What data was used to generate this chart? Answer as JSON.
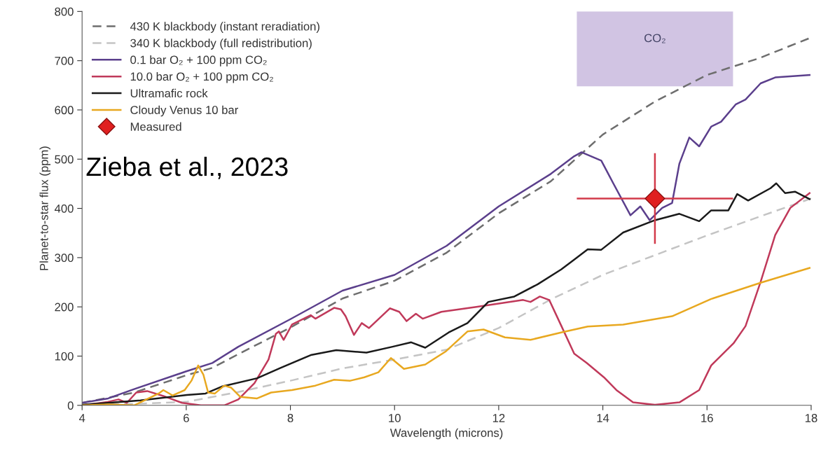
{
  "chart_data": {
    "type": "line",
    "xlabel": "Wavelength (microns)",
    "ylabel": "Planet-to-star flux (ppm)",
    "xlim": [
      4,
      18
    ],
    "xticks": [
      4,
      6,
      8,
      10,
      12,
      14,
      16,
      18
    ],
    "ylim": [
      0,
      800
    ],
    "yticks": [
      0,
      100,
      200,
      300,
      400,
      500,
      600,
      700,
      800
    ],
    "grid": false,
    "legend": "top left",
    "marker": "none",
    "annotations": [
      "Zieba et al., 2023"
    ],
    "bands": [
      {
        "axis": "x",
        "from": 13.5,
        "to": 16.5,
        "label": "CO₂",
        "color": "#9a7cc0"
      }
    ],
    "series": [
      {
        "name": "430 K blackbody (instant reradiation)",
        "color": "#6e6e6e",
        "line_style": "dashed",
        "x": [
          4,
          5,
          6,
          6.5,
          7,
          8,
          9,
          10,
          11,
          12,
          13,
          13.6,
          14,
          15,
          16,
          17,
          18
        ],
        "values": [
          5,
          26,
          61,
          76,
          104,
          158,
          217,
          253,
          310,
          390,
          455,
          512,
          550,
          617,
          671,
          705,
          747
        ]
      },
      {
        "name": "340 K blackbody (full redistribution)",
        "color": "#c4c4c4",
        "line_style": "dashed",
        "x": [
          4,
          5,
          6,
          7,
          8,
          9,
          10,
          11,
          12,
          13,
          14,
          15,
          16,
          17,
          18
        ],
        "values": [
          1,
          3,
          7,
          27,
          50,
          75,
          93,
          113,
          157,
          215,
          265,
          305,
          345,
          383,
          420
        ]
      },
      {
        "name": "0.1 bar O₂ + 100 ppm CO₂",
        "color": "#5b3f8c",
        "line_style": "solid",
        "x": [
          4,
          4.5,
          5,
          6,
          6.5,
          7,
          8,
          9,
          10,
          11,
          12,
          13,
          13.45,
          13.59,
          13.97,
          14.2,
          14.53,
          14.72,
          14.9,
          15.14,
          15.33,
          15.47,
          15.66,
          15.85,
          16.08,
          16.27,
          16.55,
          16.74,
          17.03,
          17.31,
          17.97
        ],
        "values": [
          5,
          14,
          33,
          69,
          86,
          119,
          175,
          233,
          265,
          324,
          404,
          470,
          506,
          514,
          497,
          451,
          386,
          404,
          376,
          401,
          411,
          491,
          544,
          526,
          566,
          576,
          611,
          621,
          654,
          666,
          671
        ]
      },
      {
        "name": "10.0 bar O₂ + 100 ppm CO₂",
        "color": "#c0395a",
        "line_style": "solid",
        "x": [
          4,
          4.49,
          4.7,
          4.86,
          5.04,
          5.25,
          5.56,
          5.92,
          6.28,
          6.73,
          7,
          7.31,
          7.58,
          7.72,
          7.78,
          7.87,
          8.03,
          8.39,
          8.48,
          8.84,
          8.97,
          9.06,
          9.22,
          9.37,
          9.51,
          9.91,
          10.09,
          10.23,
          10.41,
          10.54,
          10.9,
          11.57,
          12.47,
          12.61,
          12.79,
          12.97,
          13.2,
          13.45,
          13.69,
          14.02,
          14.26,
          14.58,
          15,
          15.47,
          15.85,
          16.08,
          16.51,
          16.74,
          17.03,
          17.31,
          17.6,
          17.97
        ],
        "values": [
          0,
          7,
          12,
          5,
          26,
          29,
          19,
          5,
          0,
          0,
          12,
          45,
          93,
          145,
          150,
          133,
          164,
          183,
          176,
          198,
          195,
          181,
          143,
          167,
          157,
          197,
          190,
          171,
          186,
          176,
          190,
          200,
          214,
          210,
          221,
          214,
          162,
          105,
          86,
          57,
          31,
          6,
          1,
          6,
          31,
          81,
          126,
          161,
          251,
          346,
          401,
          431
        ]
      },
      {
        "name": "Ultramafic rock",
        "color": "#1a1a1a",
        "line_style": "solid",
        "x": [
          4,
          5.12,
          6.01,
          6.37,
          6.68,
          7.36,
          7.81,
          8.39,
          8.88,
          9.46,
          9.96,
          10.32,
          10.59,
          11.04,
          11.4,
          11.8,
          12.3,
          12.75,
          13.2,
          13.45,
          13.71,
          13.97,
          14.39,
          15,
          15.47,
          15.85,
          16.08,
          16.41,
          16.58,
          16.79,
          17.22,
          17.33,
          17.5,
          17.69,
          17.97
        ],
        "values": [
          1,
          10,
          21,
          24,
          38,
          55,
          76,
          102,
          112,
          107,
          119,
          128,
          117,
          148,
          167,
          210,
          221,
          246,
          276,
          296,
          317,
          316,
          351,
          376,
          389,
          374,
          396,
          396,
          429,
          416,
          441,
          451,
          431,
          434,
          419
        ]
      },
      {
        "name": "Cloudy Venus 10 bar",
        "color": "#e8a820",
        "line_style": "solid",
        "x": [
          4,
          4.5,
          5,
          5.47,
          5.56,
          5.74,
          5.97,
          6.1,
          6.23,
          6.33,
          6.42,
          6.55,
          6.73,
          6.86,
          7.04,
          7.36,
          7.63,
          8.03,
          8.48,
          8.84,
          9.15,
          9.42,
          9.69,
          9.93,
          10.18,
          10.59,
          10.99,
          11.4,
          11.71,
          12.12,
          12.61,
          13.2,
          13.71,
          14.39,
          15.33,
          16.08,
          17.03,
          17.97
        ],
        "values": [
          0,
          2,
          0,
          24,
          31,
          20,
          31,
          50,
          81,
          62,
          26,
          24,
          40,
          36,
          17,
          14,
          26,
          31,
          40,
          52,
          50,
          57,
          67,
          96,
          74,
          83,
          110,
          150,
          154,
          138,
          133,
          148,
          160,
          164,
          181,
          216,
          249,
          279
        ]
      },
      {
        "name": "Measured",
        "type": "scatter",
        "color": "#e02020",
        "marker": "diamond",
        "x": [
          15
        ],
        "values": [
          420
        ],
        "errors": [
          92
        ],
        "xerrors": [
          1.5
        ]
      }
    ]
  }
}
